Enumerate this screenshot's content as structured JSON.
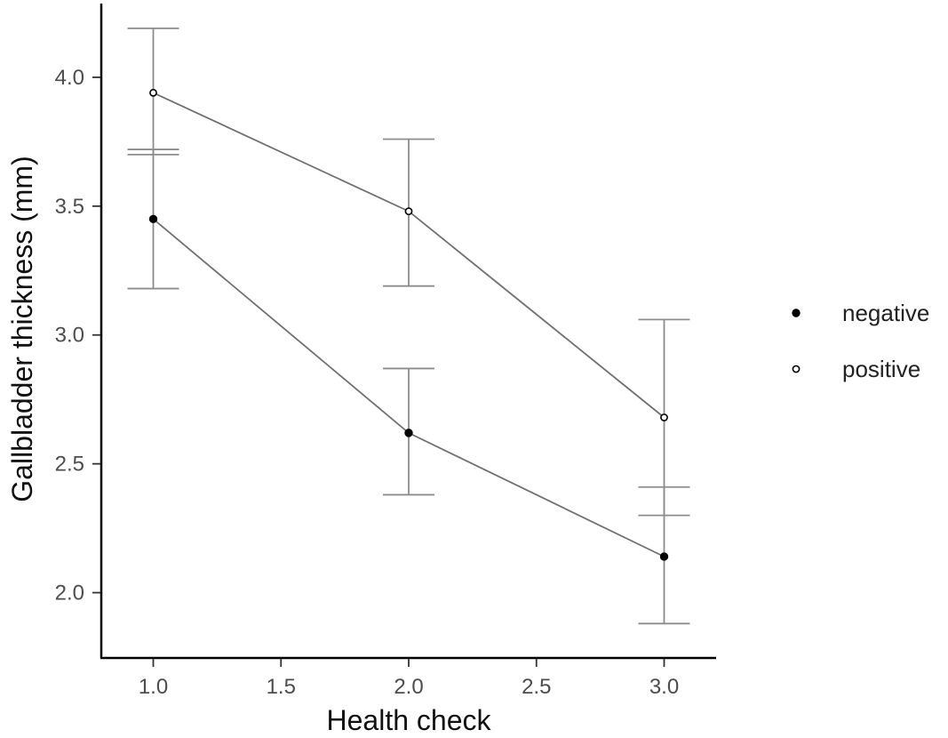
{
  "chart_data": {
    "type": "line",
    "xlabel": "Health check",
    "ylabel": "Gallbladder thickness (mm)",
    "xlim": [
      0.8,
      3.2
    ],
    "ylim": [
      1.75,
      4.3
    ],
    "x_ticks": [
      "1.0",
      "1.5",
      "2.0",
      "2.5",
      "3.0"
    ],
    "y_ticks": [
      "2.0",
      "2.5",
      "3.0",
      "3.5",
      "4.0"
    ],
    "grid": false,
    "legend_position": "right",
    "x": [
      1.0,
      2.0,
      3.0
    ],
    "series": [
      {
        "name": "negative",
        "marker": "filled",
        "values": [
          3.45,
          2.62,
          2.14
        ],
        "error_low": [
          3.18,
          2.38,
          1.88
        ],
        "error_high": [
          3.72,
          2.87,
          2.41
        ]
      },
      {
        "name": "positive",
        "marker": "open",
        "values": [
          3.94,
          3.48,
          2.68
        ],
        "error_low": [
          3.7,
          3.19,
          2.3
        ],
        "error_high": [
          4.19,
          3.76,
          3.06
        ]
      }
    ]
  }
}
